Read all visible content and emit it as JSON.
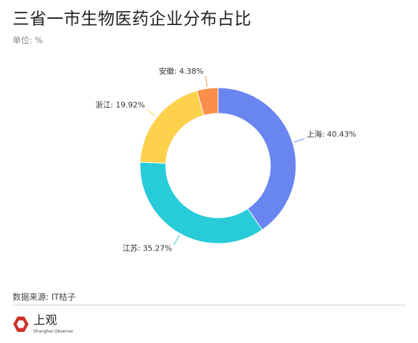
{
  "header": {
    "title": "三省一市生物医药企业分布占比",
    "unit": "单位: %"
  },
  "chart_data": {
    "type": "pie",
    "donut": true,
    "start": "top",
    "direction": "clockwise",
    "categories": [
      "上海",
      "江苏",
      "浙江",
      "安徽"
    ],
    "values": [
      40.43,
      35.27,
      19.92,
      4.38
    ],
    "labels": [
      "上海: 40.43%",
      "江苏: 35.27%",
      "浙江: 19.92%",
      "安徽: 4.38%"
    ],
    "colors": [
      "#6986f0",
      "#27ccd8",
      "#fdd14c",
      "#fb8e4a"
    ]
  },
  "footer": {
    "source": "数据来源: IT桔子",
    "logo_text": "上观",
    "logo_sub": "Shanghai Observer",
    "logo_color": "#d0302b"
  }
}
